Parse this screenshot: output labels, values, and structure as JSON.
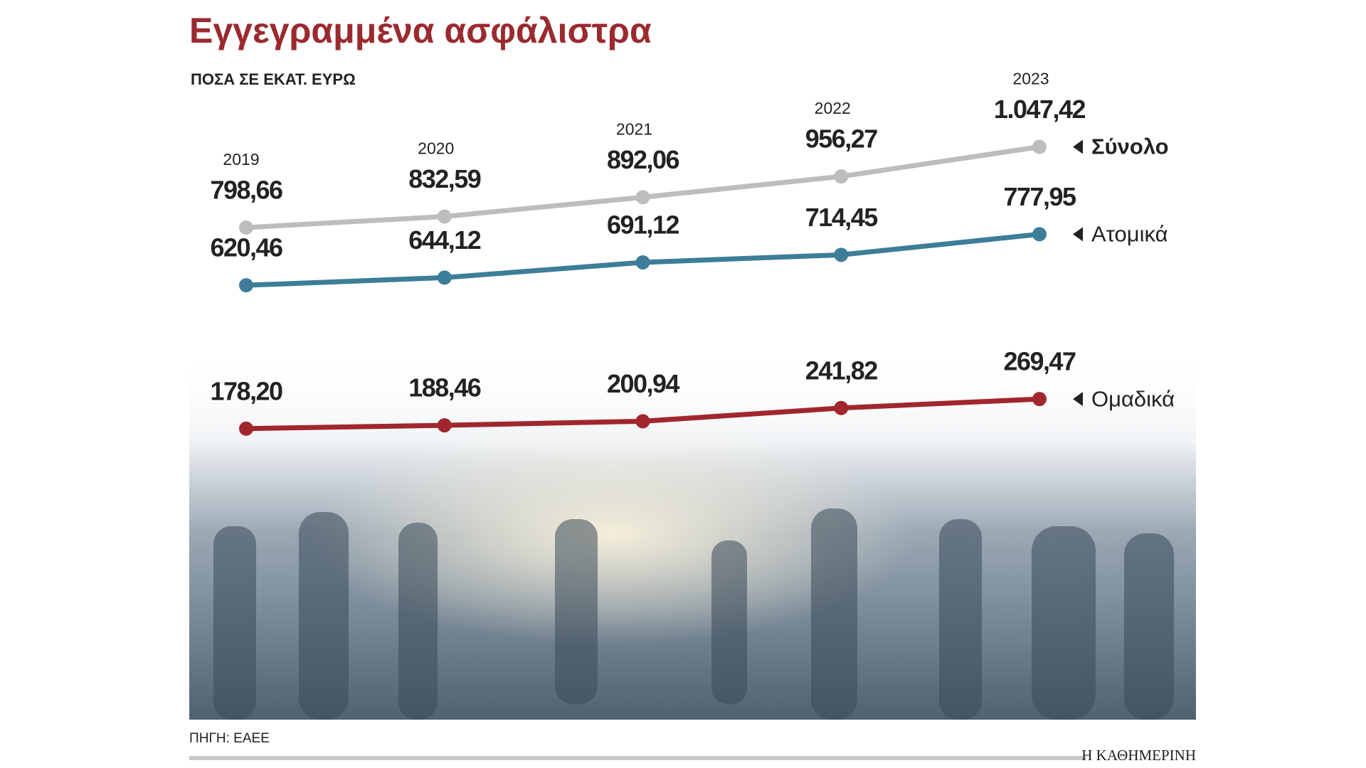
{
  "chart_data": {
    "type": "line",
    "title": "Εγγεγραμμένα ασφάλιστρα",
    "subtitle": "ΠΟΣΑ ΣΕ ΕΚΑΤ. ΕΥΡΩ",
    "categories": [
      "2019",
      "2020",
      "2021",
      "2022",
      "2023"
    ],
    "ylim": [
      0,
      1200
    ],
    "series": [
      {
        "name": "Σύνολο",
        "color": "#bdbdbd",
        "values": [
          798.66,
          832.59,
          892.06,
          956.27,
          1047.42
        ],
        "value_labels": [
          "798,66",
          "832,59",
          "892,06",
          "956,27",
          "1.047,42"
        ]
      },
      {
        "name": "Ατομικά",
        "color": "#3d7d99",
        "values": [
          620.46,
          644.12,
          691.12,
          714.45,
          777.95
        ],
        "value_labels": [
          "620,46",
          "644,12",
          "691,12",
          "714,45",
          "777,95"
        ]
      },
      {
        "name": "Ομαδικά",
        "color": "#a1262d",
        "values": [
          178.2,
          188.46,
          200.94,
          241.82,
          269.47
        ],
        "value_labels": [
          "178,20",
          "188,46",
          "200,94",
          "241,82",
          "269,47"
        ]
      }
    ],
    "source": "ΠΗΓΗ: ΕΑΕΕ",
    "brand": "Η ΚΑΘΗΜΕΡΙΝΗ"
  }
}
